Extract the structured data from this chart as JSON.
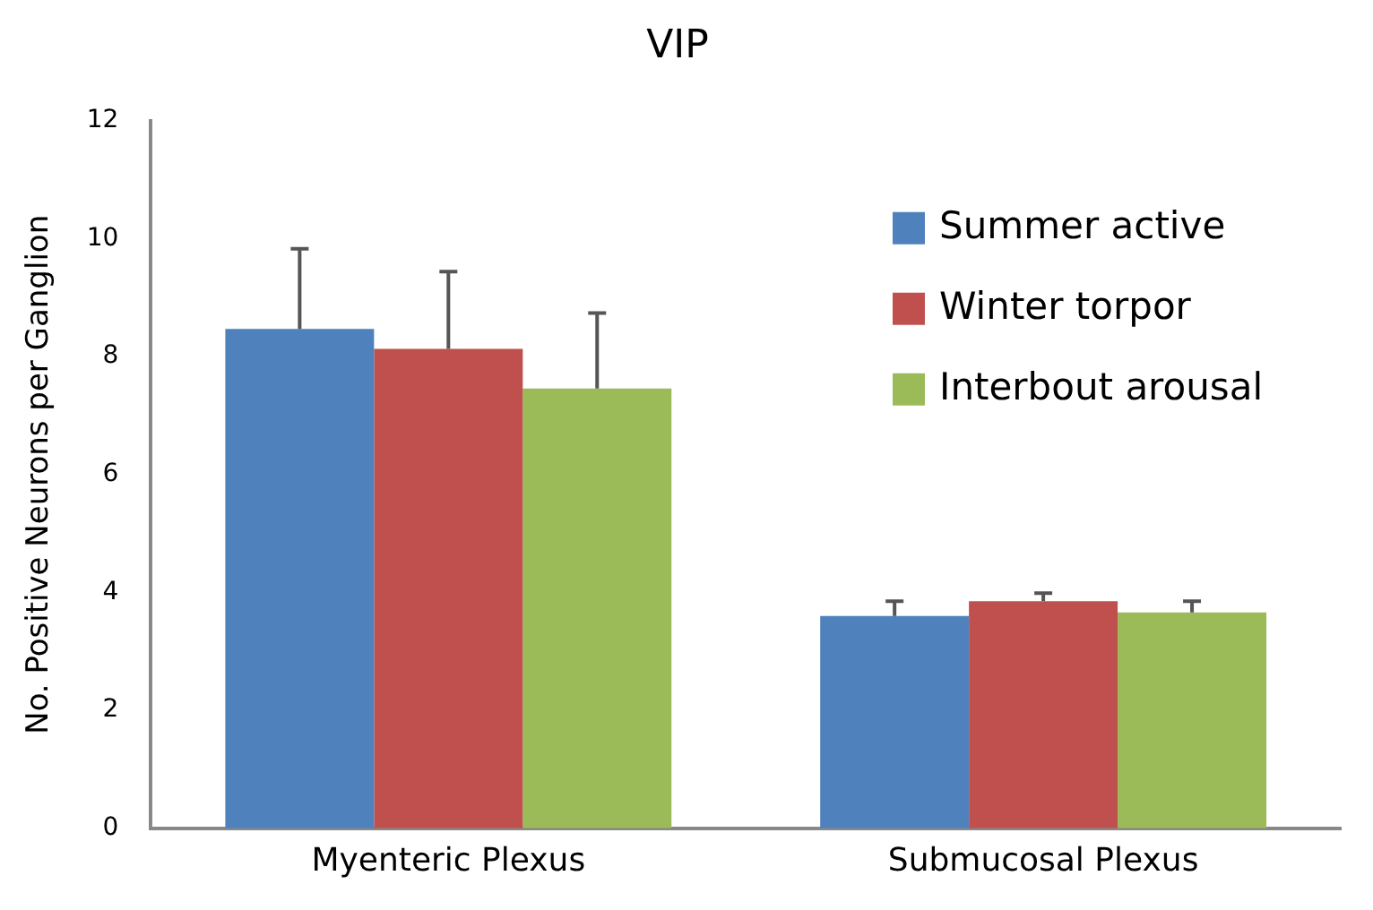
{
  "chart_data": {
    "type": "bar",
    "title": "VIP",
    "ylabel": "No. Positive Neurons per Ganglion",
    "categories": [
      "Myenteric Plexus",
      "Submucosal Plexus"
    ],
    "series": [
      {
        "name": "Summer active",
        "color": "#4f81bd",
        "values": [
          8.47,
          3.6
        ],
        "errors": [
          [
            8.47,
            9.83
          ],
          [
            3.6,
            3.85
          ]
        ]
      },
      {
        "name": "Winter torpor",
        "color": "#c0504d",
        "values": [
          8.13,
          3.85
        ],
        "errors": [
          [
            8.13,
            9.44
          ],
          [
            3.85,
            3.99
          ]
        ]
      },
      {
        "name": "Interbout arousal",
        "color": "#9bbb59",
        "values": [
          7.46,
          3.66
        ],
        "errors": [
          [
            7.46,
            8.74
          ],
          [
            3.66,
            3.85
          ]
        ]
      }
    ],
    "ylim": [
      0,
      12
    ],
    "yticks": [
      0,
      2,
      4,
      6,
      8,
      10,
      12
    ],
    "grid": false,
    "legend": "top right"
  }
}
